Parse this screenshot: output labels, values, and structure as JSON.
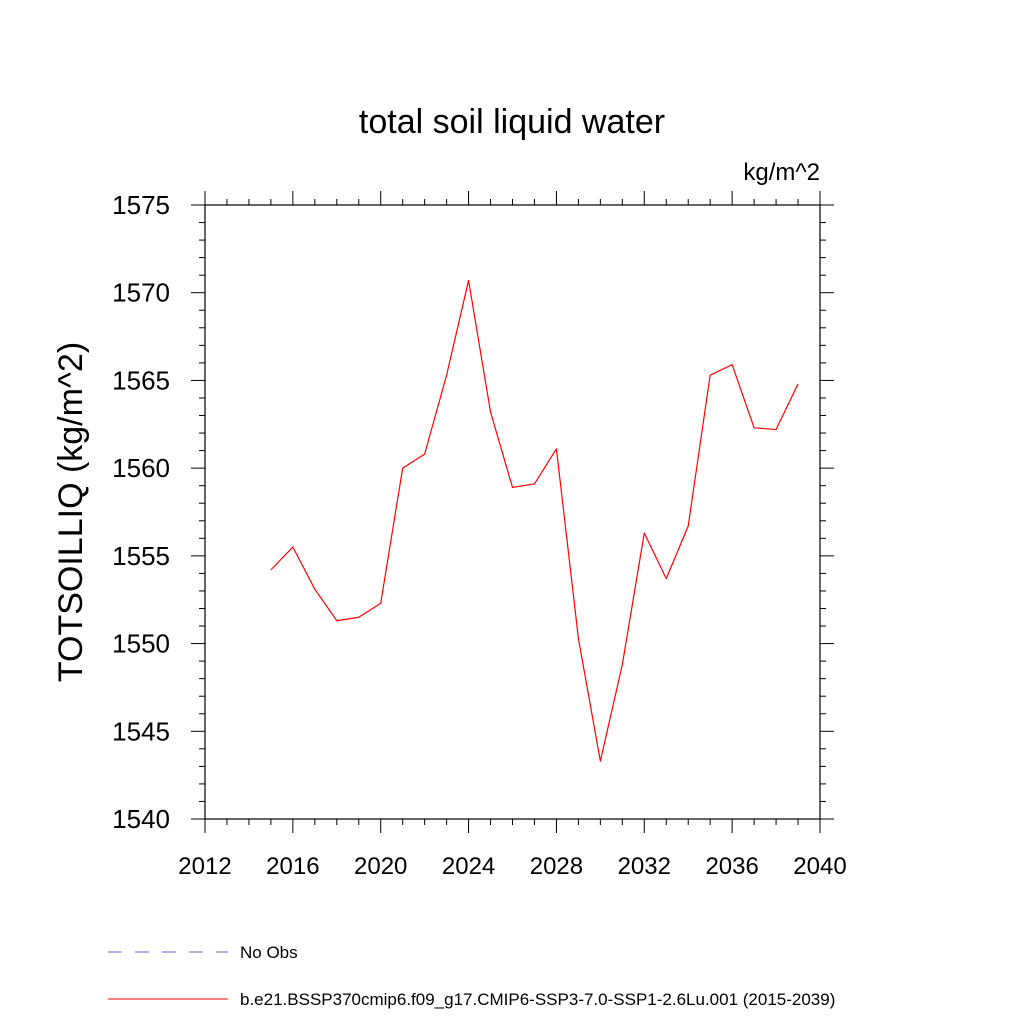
{
  "chart_data": {
    "type": "line",
    "title": "total soil liquid water",
    "units_label": "kg/m^2",
    "ylabel": "TOTSOILLIQ  (kg/m^2)",
    "xlabel": "",
    "xlim": [
      2012,
      2040
    ],
    "ylim": [
      1540,
      1575
    ],
    "x_ticks": [
      2012,
      2016,
      2020,
      2024,
      2028,
      2032,
      2036,
      2040
    ],
    "y_ticks": [
      1540,
      1545,
      1550,
      1555,
      1560,
      1565,
      1570,
      1575
    ],
    "grid": false,
    "legend_position": "bottom-left",
    "series": [
      {
        "name": "b.e21.BSSP370cmip6.f09_g17.CMIP6-SSP3-7.0-SSP1-2.6Lu.001 (2015-2039)",
        "color": "#ff0000",
        "dash": "solid",
        "x": [
          2015,
          2016,
          2017,
          2018,
          2019,
          2020,
          2021,
          2022,
          2023,
          2024,
          2025,
          2026,
          2027,
          2028,
          2029,
          2030,
          2031,
          2032,
          2033,
          2034,
          2035,
          2036,
          2037,
          2038,
          2039
        ],
        "values": [
          1554.2,
          1555.5,
          1553.1,
          1551.3,
          1551.5,
          1552.3,
          1560.0,
          1560.8,
          1565.3,
          1570.7,
          1563.2,
          1558.9,
          1559.1,
          1561.1,
          1550.3,
          1543.3,
          1548.8,
          1556.3,
          1553.7,
          1556.7,
          1565.3,
          1565.9,
          1562.3,
          1562.2,
          1564.8
        ]
      }
    ],
    "legend": [
      {
        "label": "No Obs",
        "color": "#6a5acd",
        "dash": "dashed"
      },
      {
        "label": "b.e21.BSSP370cmip6.f09_g17.CMIP6-SSP3-7.0-SSP1-2.6Lu.001 (2015-2039)",
        "color": "#ff0000",
        "dash": "solid"
      }
    ]
  }
}
